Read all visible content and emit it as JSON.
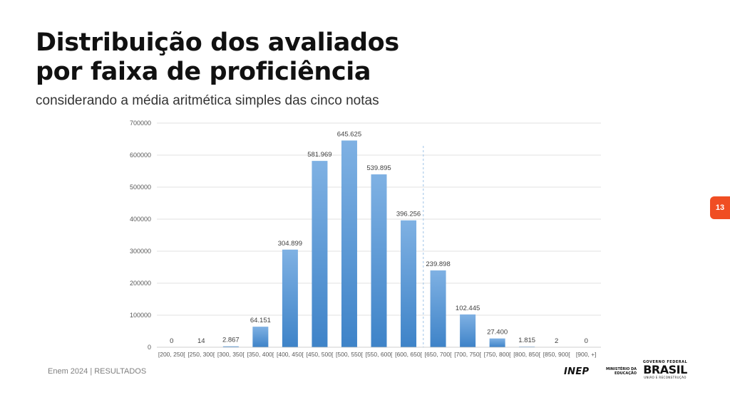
{
  "slide": {
    "title_line1": "Distribuição dos avaliados",
    "title_line2": "por faixa de proficiência",
    "subtitle": "considerando a média aritmética simples das cinco notas",
    "page_number": "13",
    "footer": "Enem 2024 | RESULTADOS",
    "logo_inep": "INEP",
    "logo_mec_line1": "MINISTÉRIO DA",
    "logo_mec_line2": "EDUCAÇÃO",
    "logo_gov_line1": "GOVERNO FEDERAL",
    "logo_gov_line2": "BRASIL",
    "logo_gov_line3": "UNIÃO E RECONSTRUÇÃO",
    "accent_color": "#f04e23"
  },
  "chart_data": {
    "type": "bar",
    "title": "",
    "xlabel": "",
    "ylabel": "",
    "ylim": [
      0,
      700000
    ],
    "yticks": [
      0,
      100000,
      200000,
      300000,
      400000,
      500000,
      600000,
      700000
    ],
    "ytick_labels": [
      "0",
      "100000",
      "200000",
      "300000",
      "400000",
      "500000",
      "600000",
      "700000"
    ],
    "categories": [
      "[200, 250[",
      "[250, 300[",
      "[300, 350[",
      "[350, 400[",
      "[400, 450[",
      "[450, 500[",
      "[500, 550[",
      "[550, 600[",
      "[600, 650[",
      "[650, 700[",
      "[700, 750[",
      "[750, 800[",
      "[800, 850[",
      "[850, 900[",
      "[900, +]"
    ],
    "values": [
      0,
      14,
      2867,
      64151,
      304899,
      581969,
      645625,
      539895,
      396256,
      239898,
      102445,
      27400,
      1815,
      2,
      0
    ],
    "value_labels": [
      "0",
      "14",
      "2.867",
      "64.151",
      "304.899",
      "581.969",
      "645.625",
      "539.895",
      "396.256",
      "239.898",
      "102.445",
      "27.400",
      "1.815",
      "2",
      "0"
    ],
    "grid": true,
    "bar_color": "#5b9bd5",
    "reference_line_between": [
      "[600, 650[",
      "[650, 700["
    ]
  }
}
